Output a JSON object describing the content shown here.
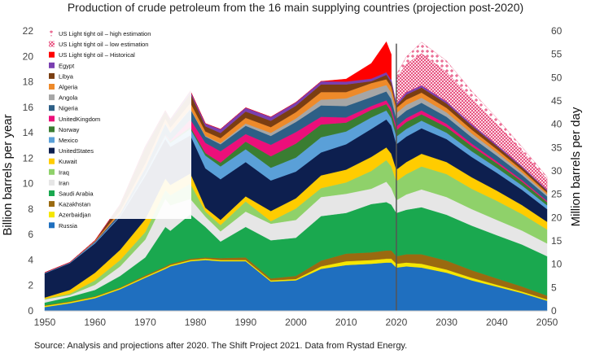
{
  "chart_data": {
    "type": "area",
    "stacked": true,
    "title": "Production of crude petroleum from the 16 main supplying countries (projection post-2020)",
    "xlabel": "",
    "ylabel": "Billion barrels per year",
    "y2label": "Million barrels per day",
    "xlim": [
      1950,
      2050
    ],
    "ylim": [
      0,
      22
    ],
    "y2lim": [
      0,
      60
    ],
    "xticks": [
      "1950",
      "1960",
      "1970",
      "1980",
      "1990",
      "2000",
      "2010",
      "2020",
      "2030",
      "2040",
      "2050"
    ],
    "yticks": [
      "0",
      "2",
      "4",
      "6",
      "8",
      "10",
      "12",
      "14",
      "16",
      "18",
      "20",
      "22"
    ],
    "y2ticks": [
      "0",
      "5",
      "10",
      "15",
      "20",
      "25",
      "30",
      "35",
      "40",
      "45",
      "50",
      "55",
      "60"
    ],
    "projection_start": 2020,
    "source": "Source: Analysis and projections after 2020. The Shift Project 2021. Data from Rystad Energy.",
    "x": [
      1950,
      1955,
      1960,
      1965,
      1970,
      1974,
      1975,
      1979,
      1982,
      1985,
      1990,
      1995,
      2000,
      2005,
      2010,
      2015,
      2018,
      2019,
      2020,
      2022,
      2025,
      2030,
      2035,
      2040,
      2045,
      2050
    ],
    "series": [
      {
        "name": "Russia",
        "color": "#1f6fbf",
        "values": [
          0.3,
          0.6,
          1.0,
          1.7,
          2.6,
          3.3,
          3.5,
          3.9,
          4.0,
          3.9,
          3.9,
          2.3,
          2.4,
          3.3,
          3.6,
          3.7,
          3.8,
          3.8,
          3.4,
          3.5,
          3.4,
          3.0,
          2.4,
          1.9,
          1.4,
          0.8
        ]
      },
      {
        "name": "Azerbaidjan",
        "color": "#f5e600",
        "values": [
          0.1,
          0.1,
          0.1,
          0.1,
          0.1,
          0.1,
          0.1,
          0.1,
          0.1,
          0.1,
          0.1,
          0.1,
          0.1,
          0.2,
          0.3,
          0.3,
          0.3,
          0.3,
          0.3,
          0.3,
          0.3,
          0.25,
          0.2,
          0.15,
          0.12,
          0.1
        ]
      },
      {
        "name": "Kazakhstan",
        "color": "#9a6a10",
        "values": [
          0.05,
          0.05,
          0.05,
          0.05,
          0.1,
          0.1,
          0.1,
          0.1,
          0.1,
          0.15,
          0.2,
          0.15,
          0.25,
          0.45,
          0.6,
          0.6,
          0.65,
          0.65,
          0.6,
          0.65,
          0.75,
          0.7,
          0.6,
          0.5,
          0.4,
          0.3
        ]
      },
      {
        "name": "Saudi Arabia",
        "color": "#1aa84f",
        "values": [
          0.2,
          0.35,
          0.5,
          0.9,
          1.4,
          3.1,
          2.6,
          3.5,
          2.4,
          1.3,
          2.4,
          3.0,
          3.0,
          3.5,
          3.2,
          3.8,
          3.8,
          3.6,
          3.4,
          3.5,
          3.7,
          3.6,
          3.5,
          3.4,
          3.3,
          3.1
        ]
      },
      {
        "name": "Iran",
        "color": "#e6e6e6",
        "values": [
          0.25,
          0.15,
          0.4,
          0.75,
          1.4,
          2.2,
          2.0,
          1.2,
          0.8,
          0.8,
          1.2,
          1.3,
          1.4,
          1.5,
          1.5,
          1.2,
          1.6,
          1.3,
          1.0,
          1.2,
          1.4,
          1.4,
          1.3,
          1.2,
          1.1,
          1.0
        ]
      },
      {
        "name": "Iraq",
        "color": "#8fd16a",
        "values": [
          0.05,
          0.1,
          0.35,
          0.5,
          0.6,
          0.7,
          0.8,
          1.2,
          0.4,
          0.5,
          0.8,
          0.2,
          0.9,
          0.7,
          0.9,
          1.4,
          1.7,
          1.7,
          1.5,
          1.6,
          1.8,
          1.8,
          1.6,
          1.5,
          1.3,
          1.1
        ]
      },
      {
        "name": "Kuwait",
        "color": "#ffcc00",
        "values": [
          0.1,
          0.3,
          0.6,
          0.8,
          1.0,
          0.9,
          0.8,
          0.8,
          0.3,
          0.4,
          0.4,
          0.8,
          0.8,
          1.0,
          1.0,
          1.1,
          1.0,
          1.0,
          0.9,
          0.95,
          1.0,
          0.95,
          0.9,
          0.8,
          0.7,
          0.6
        ]
      },
      {
        "name": "United States",
        "color": "#0d1f4f",
        "values": [
          1.9,
          2.1,
          2.3,
          2.6,
          3.4,
          3.1,
          3.0,
          3.0,
          3.1,
          3.2,
          2.7,
          2.4,
          2.1,
          1.8,
          2.0,
          2.2,
          2.2,
          2.2,
          2.0,
          2.0,
          2.0,
          1.8,
          1.6,
          1.4,
          1.2,
          1.0
        ]
      },
      {
        "name": "Mexico",
        "color": "#5aa0d8",
        "values": [
          0.05,
          0.05,
          0.1,
          0.1,
          0.2,
          0.3,
          0.3,
          0.5,
          1.0,
          1.0,
          1.0,
          1.0,
          1.1,
          1.2,
          1.0,
          0.9,
          0.7,
          0.6,
          0.6,
          0.6,
          0.6,
          0.5,
          0.45,
          0.4,
          0.35,
          0.3
        ]
      },
      {
        "name": "Norway",
        "color": "#3a7d32",
        "values": [
          0.0,
          0.0,
          0.0,
          0.0,
          0.0,
          0.05,
          0.1,
          0.15,
          0.2,
          0.3,
          0.6,
          0.9,
          1.1,
          1.0,
          0.7,
          0.6,
          0.5,
          0.5,
          0.5,
          0.55,
          0.5,
          0.45,
          0.4,
          0.35,
          0.3,
          0.25
        ]
      },
      {
        "name": "United Kingdom",
        "color": "#ec0f7a",
        "values": [
          0.0,
          0.0,
          0.0,
          0.0,
          0.0,
          0.05,
          0.1,
          0.6,
          0.8,
          0.9,
          0.6,
          0.9,
          0.9,
          0.6,
          0.4,
          0.3,
          0.3,
          0.3,
          0.3,
          0.3,
          0.3,
          0.25,
          0.2,
          0.15,
          0.12,
          0.1
        ]
      },
      {
        "name": "Nigeria",
        "color": "#2d5f86",
        "values": [
          0.0,
          0.0,
          0.05,
          0.15,
          0.4,
          0.8,
          0.6,
          0.8,
          0.5,
          0.55,
          0.65,
          0.7,
          0.8,
          0.9,
          0.9,
          0.7,
          0.7,
          0.7,
          0.6,
          0.6,
          0.6,
          0.55,
          0.5,
          0.45,
          0.4,
          0.35
        ]
      },
      {
        "name": "Angola",
        "color": "#a6a6a6",
        "values": [
          0.0,
          0.0,
          0.0,
          0.02,
          0.05,
          0.06,
          0.06,
          0.05,
          0.05,
          0.08,
          0.17,
          0.24,
          0.27,
          0.45,
          0.6,
          0.6,
          0.5,
          0.5,
          0.45,
          0.45,
          0.4,
          0.35,
          0.3,
          0.25,
          0.2,
          0.15
        ]
      },
      {
        "name": "Algeria",
        "color": "#ee8a2a",
        "values": [
          0.0,
          0.0,
          0.06,
          0.2,
          0.35,
          0.35,
          0.35,
          0.45,
          0.35,
          0.4,
          0.45,
          0.45,
          0.5,
          0.6,
          0.5,
          0.5,
          0.45,
          0.45,
          0.4,
          0.4,
          0.4,
          0.35,
          0.3,
          0.25,
          0.2,
          0.15
        ]
      },
      {
        "name": "Libya",
        "color": "#7a3e12",
        "values": [
          0.0,
          0.0,
          0.0,
          0.45,
          1.2,
          0.55,
          0.55,
          0.75,
          0.4,
          0.4,
          0.5,
          0.5,
          0.5,
          0.6,
          0.6,
          0.15,
          0.35,
          0.35,
          0.15,
          0.4,
          0.4,
          0.35,
          0.3,
          0.25,
          0.2,
          0.15
        ]
      },
      {
        "name": "Egypt",
        "color": "#7a3fb0",
        "values": [
          0.02,
          0.02,
          0.03,
          0.05,
          0.12,
          0.08,
          0.1,
          0.18,
          0.22,
          0.3,
          0.3,
          0.3,
          0.27,
          0.24,
          0.22,
          0.2,
          0.2,
          0.2,
          0.18,
          0.18,
          0.17,
          0.15,
          0.13,
          0.11,
          0.1,
          0.08
        ]
      },
      {
        "name": "US Light tight oil – Historical",
        "color": "#ff0000",
        "values": [
          0,
          0,
          0,
          0,
          0,
          0,
          0,
          0,
          0,
          0,
          0,
          0,
          0,
          0,
          0.2,
          1.2,
          2.4,
          2.0,
          null,
          null,
          null,
          null,
          null,
          null,
          null,
          null
        ]
      },
      {
        "name": "US Light tight oil – low estimation",
        "color": "#e43a6f",
        "pattern": "crosshatch",
        "x": [
          2020,
          2022,
          2025,
          2030,
          2035,
          2040,
          2045,
          2050
        ],
        "values": [
          2.0,
          2.2,
          2.5,
          2.3,
          2.0,
          1.6,
          1.2,
          0.8
        ]
      },
      {
        "name": "US Light tight oil – high estimation",
        "color": "#e43a6f",
        "pattern": "plus",
        "x": [
          2020,
          2022,
          2025,
          2030,
          2035,
          2040,
          2045,
          2050
        ],
        "values": [
          2.3,
          2.8,
          3.4,
          3.2,
          2.6,
          2.1,
          1.5,
          1.0
        ]
      }
    ],
    "legend_order": [
      "US Light tight oil – high estimation",
      "US Light tight oil – low estimation",
      "US Light tight oil – Historical",
      "Egypt",
      "Libya",
      "Algeria",
      "Angola",
      "Nigeria",
      "United Kingdom",
      "Norway",
      "Mexico",
      "United States",
      "Kuwait",
      "Iraq",
      "Iran",
      "Saudi Arabia",
      "Kazakhstan",
      "Azerbaidjan",
      "Russia"
    ],
    "legend_labels": [
      "US Light tight oil – high estimation",
      "US Light tight oil – low estimation",
      "US Light tight oil – Historical",
      "Egypt",
      "Libya",
      "Algeria",
      "Angola",
      "Nigeria",
      "UnitedKingdom",
      "Norway",
      "Mexico",
      "UnitedStates",
      "Kuwait",
      "Iraq",
      "Iran",
      "Saudi Arabia",
      "Kazakhstan",
      "Azerbaidjan",
      "Russia"
    ],
    "legend_position": "top-left"
  }
}
